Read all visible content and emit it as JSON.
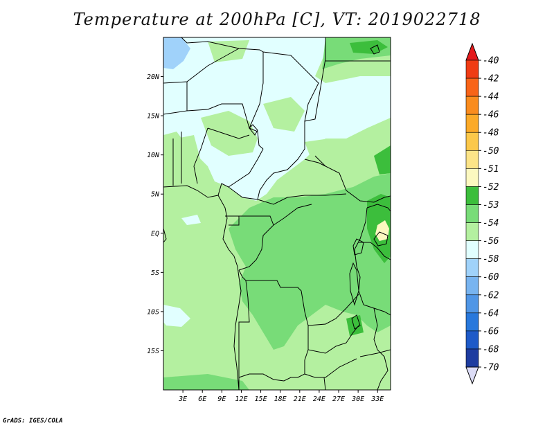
{
  "title": "Temperature at 200hPa [C], VT: 2019022718",
  "credit": "GrADS: IGES/COLA",
  "map": {
    "lon_range": [
      0,
      35
    ],
    "lat_range": [
      -20,
      25
    ],
    "lat_ticks": [
      {
        "v": 20,
        "label": "20N"
      },
      {
        "v": 15,
        "label": "15N"
      },
      {
        "v": 10,
        "label": "10N"
      },
      {
        "v": 5,
        "label": "5N"
      },
      {
        "v": 0,
        "label": "EQ"
      },
      {
        "v": -5,
        "label": "5S"
      },
      {
        "v": -10,
        "label": "10S"
      },
      {
        "v": -15,
        "label": "15S"
      }
    ],
    "lon_ticks": [
      {
        "v": 3,
        "label": "3E"
      },
      {
        "v": 6,
        "label": "6E"
      },
      {
        "v": 9,
        "label": "9E"
      },
      {
        "v": 12,
        "label": "12E"
      },
      {
        "v": 15,
        "label": "15E"
      },
      {
        "v": 18,
        "label": "18E"
      },
      {
        "v": 21,
        "label": "21E"
      },
      {
        "v": 24,
        "label": "24E"
      },
      {
        "v": 27,
        "label": "27E"
      },
      {
        "v": 30,
        "label": "30E"
      },
      {
        "v": 33,
        "label": "33E"
      }
    ],
    "background_color": "#b4f0a0"
  },
  "colorbar": {
    "min_color": "#dcdcf6",
    "max_color": "#e41a1c",
    "boxes": [
      {
        "color": "#f03c14",
        "label": "-40"
      },
      {
        "color": "#f86418",
        "label": "-42"
      },
      {
        "color": "#fa8c1e",
        "label": "-44"
      },
      {
        "color": "#fcaa28",
        "label": "-46"
      },
      {
        "color": "#fcc84a",
        "label": "-48"
      },
      {
        "color": "#fce488",
        "label": "-50"
      },
      {
        "color": "#fcf8c0",
        "label": "-51"
      },
      {
        "color": "#3cbe3c",
        "label": "-52"
      },
      {
        "color": "#78dc78",
        "label": "-53"
      },
      {
        "color": "#b4f0a0",
        "label": "-54"
      },
      {
        "color": "#e1ffff",
        "label": "-56"
      },
      {
        "color": "#a0d2fa",
        "label": "-58"
      },
      {
        "color": "#78b4f0",
        "label": "-60"
      },
      {
        "color": "#5096e6",
        "label": "-62"
      },
      {
        "color": "#2878dc",
        "label": "-64"
      },
      {
        "color": "#1e5ac8",
        "label": "-66"
      },
      {
        "color": "#1e3ca0",
        "label": "-68"
      },
      {
        "color": "#0a1464",
        "label": "-70"
      }
    ]
  }
}
